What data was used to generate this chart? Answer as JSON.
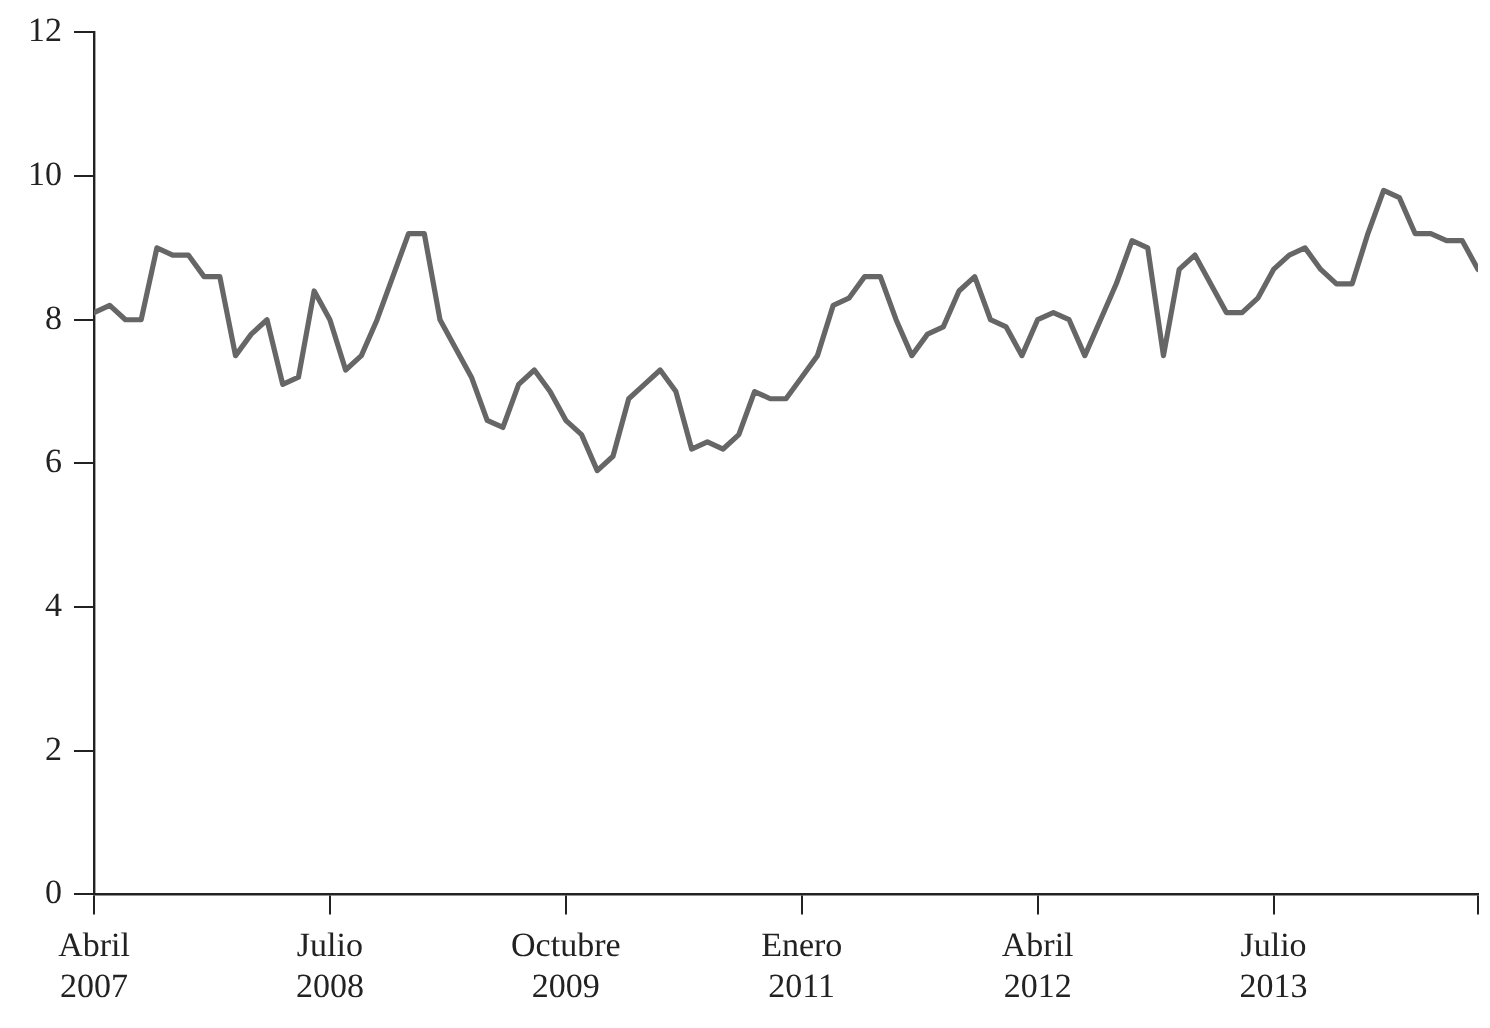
{
  "chart_data": {
    "type": "line",
    "x": [
      "2007-04",
      "2007-05",
      "2007-06",
      "2007-07",
      "2007-08",
      "2007-09",
      "2007-10",
      "2007-11",
      "2007-12",
      "2008-01",
      "2008-02",
      "2008-03",
      "2008-04",
      "2008-05",
      "2008-06",
      "2008-07",
      "2008-08",
      "2008-09",
      "2008-10",
      "2008-11",
      "2008-12",
      "2009-01",
      "2009-02",
      "2009-03",
      "2009-04",
      "2009-05",
      "2009-06",
      "2009-07",
      "2009-08",
      "2009-09",
      "2009-10",
      "2009-11",
      "2009-12",
      "2010-01",
      "2010-02",
      "2010-03",
      "2010-04",
      "2010-05",
      "2010-06",
      "2010-07",
      "2010-08",
      "2010-09",
      "2010-10",
      "2010-11",
      "2010-12",
      "2011-01",
      "2011-02",
      "2011-03",
      "2011-04",
      "2011-05",
      "2011-06",
      "2011-07",
      "2011-08",
      "2011-09",
      "2011-10",
      "2011-11",
      "2011-12",
      "2012-01",
      "2012-02",
      "2012-03",
      "2012-04",
      "2012-05",
      "2012-06",
      "2012-07",
      "2012-08",
      "2012-09",
      "2012-10",
      "2012-11",
      "2012-12",
      "2013-01",
      "2013-02",
      "2013-03",
      "2013-04",
      "2013-05",
      "2013-06",
      "2013-07",
      "2013-08",
      "2013-09",
      "2013-10",
      "2013-11",
      "2013-12",
      "2014-01",
      "2014-02",
      "2014-03",
      "2014-04",
      "2014-05",
      "2014-06",
      "2014-07",
      "2014-08"
    ],
    "series": [
      {
        "color": "#666666",
        "values": [
          8.1,
          8.2,
          8.0,
          8.0,
          9.0,
          8.9,
          8.9,
          8.6,
          8.6,
          7.5,
          7.8,
          8.0,
          7.1,
          7.2,
          8.4,
          8.0,
          7.3,
          7.5,
          8.0,
          8.6,
          9.2,
          9.2,
          8.0,
          7.6,
          7.2,
          6.6,
          6.5,
          7.1,
          7.3,
          7.0,
          6.6,
          6.4,
          5.9,
          6.1,
          6.9,
          7.1,
          7.3,
          7.0,
          6.2,
          6.3,
          6.2,
          6.4,
          7.0,
          6.9,
          6.9,
          7.2,
          7.5,
          8.2,
          8.3,
          8.6,
          8.6,
          8.0,
          7.5,
          7.8,
          7.9,
          8.4,
          8.6,
          8.0,
          7.9,
          7.5,
          8.0,
          8.1,
          8.0,
          7.5,
          8.0,
          8.5,
          9.1,
          9.0,
          7.5,
          8.7,
          8.9,
          8.5,
          8.1,
          8.1,
          8.3,
          8.7,
          8.9,
          9.0,
          8.7,
          8.5,
          8.5,
          9.2,
          9.8,
          9.7,
          9.2,
          9.2,
          9.1,
          9.1,
          8.7
        ]
      }
    ],
    "xlim": [
      "2007-04",
      "2014-08"
    ],
    "xticks": [
      {
        "value": "2007-04",
        "label": "Abril 2007"
      },
      {
        "value": "2008-07",
        "label": "Julio 2008"
      },
      {
        "value": "2009-10",
        "label": "Octubre 2009"
      },
      {
        "value": "2011-01",
        "label": "Enero 2011"
      },
      {
        "value": "2012-04",
        "label": "Abril 2012"
      },
      {
        "value": "2013-07",
        "label": "Julio 2013"
      },
      {
        "value": "2014-08",
        "label": null
      }
    ],
    "ylim": [
      0,
      12
    ],
    "yticks": [
      0,
      2,
      4,
      6,
      8,
      10,
      12
    ],
    "grid": false,
    "legend": false,
    "marker": "none",
    "line_style": "solid"
  }
}
